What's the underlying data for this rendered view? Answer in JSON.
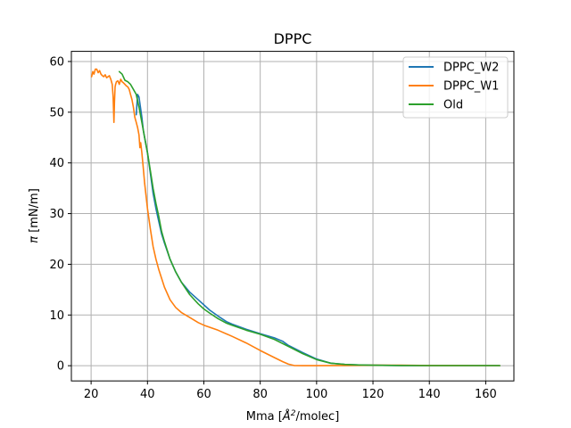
{
  "chart_data": {
    "type": "line",
    "title": "DPPC",
    "xlabel_prefix": "Mma [",
    "xlabel_symbol": "Å",
    "xlabel_sup": "2",
    "xlabel_suffix": "/molec]",
    "ylabel_symbol": "π",
    "ylabel_suffix": " [mN/m]",
    "xlim": [
      13,
      170
    ],
    "ylim": [
      -3,
      62
    ],
    "xticks": [
      20,
      40,
      60,
      80,
      100,
      120,
      140,
      160
    ],
    "yticks": [
      0,
      10,
      20,
      30,
      40,
      50,
      60
    ],
    "grid": true,
    "legend_position": "top-right",
    "series": [
      {
        "name": "DPPC_W2",
        "color": "#1f77b4",
        "x": [
          36,
          36.5,
          37,
          37.5,
          38,
          38.5,
          39,
          40,
          41,
          42,
          43,
          44,
          45,
          46,
          48,
          50,
          52,
          55,
          58,
          60,
          62,
          65,
          68,
          70,
          75,
          80,
          85,
          88,
          90,
          95,
          100,
          105,
          110,
          115,
          120,
          130,
          140,
          150,
          160,
          165
        ],
        "y": [
          49.5,
          53.5,
          53,
          51,
          49,
          46.5,
          45,
          42,
          38,
          34,
          31,
          28.5,
          26,
          24.2,
          21,
          18.5,
          16.5,
          14.5,
          13,
          12,
          11,
          9.8,
          8.7,
          8.2,
          7.2,
          6.3,
          5.5,
          4.8,
          4.0,
          2.6,
          1.3,
          0.5,
          0.25,
          0.15,
          0.1,
          0.05,
          0.03,
          0.02,
          0.02,
          0.02
        ]
      },
      {
        "name": "DPPC_W1",
        "color": "#ff7f0e",
        "x": [
          20.2,
          20.6,
          21,
          21.5,
          22,
          22.5,
          23,
          23.5,
          24,
          24.5,
          25,
          25.5,
          26,
          26.5,
          27,
          27.5,
          27.8,
          28.1,
          28.3,
          28.5,
          28.7,
          29,
          29.5,
          30,
          30.5,
          31,
          31.5,
          32,
          32.5,
          33,
          33.5,
          34,
          34.5,
          35,
          35.5,
          36,
          36.5,
          37,
          37.3,
          37.6,
          38,
          38.5,
          39,
          40,
          41,
          42,
          43,
          44,
          46,
          48,
          50,
          52,
          55,
          58,
          60,
          65,
          70,
          75,
          80,
          85,
          88,
          90,
          92,
          95,
          100,
          110,
          120,
          130,
          140,
          150,
          160,
          165
        ],
        "y": [
          57,
          58,
          57.5,
          58.5,
          58.5,
          57.8,
          58.2,
          57.5,
          57.2,
          57,
          57.4,
          56.8,
          57,
          57.2,
          56.5,
          55.5,
          53,
          48,
          52,
          55,
          55.5,
          56,
          56.2,
          55.5,
          56.5,
          56,
          55.8,
          55.5,
          55.2,
          55,
          54.5,
          53.5,
          52.5,
          51,
          49,
          48,
          47,
          45.5,
          43,
          44,
          42,
          39,
          36,
          31,
          27,
          23.5,
          21,
          19,
          15.5,
          13,
          11.5,
          10.5,
          9.5,
          8.5,
          8,
          7,
          5.8,
          4.5,
          3.0,
          1.6,
          0.8,
          0.3,
          0.05,
          0,
          0,
          0.05,
          0.1,
          0.1,
          0.05,
          0.05,
          0.02,
          0.02
        ]
      },
      {
        "name": "Old",
        "color": "#2ca02c",
        "x": [
          30,
          31,
          32,
          33,
          34,
          35,
          36,
          37,
          38,
          39,
          40,
          41,
          42,
          43,
          44,
          45,
          46,
          48,
          50,
          52,
          55,
          58,
          60,
          62,
          65,
          68,
          70,
          75,
          80,
          85,
          90,
          95,
          100,
          105,
          110,
          115,
          120,
          130,
          140,
          150,
          160,
          165
        ],
        "y": [
          58,
          57.5,
          56.3,
          56,
          55.5,
          54.5,
          53.5,
          51,
          48,
          45,
          42,
          38.5,
          35,
          32,
          29.5,
          26.5,
          24.5,
          21,
          18.5,
          16.5,
          14,
          12.2,
          11.2,
          10.4,
          9.3,
          8.4,
          8.0,
          7.0,
          6.2,
          5.2,
          3.8,
          2.4,
          1.2,
          0.5,
          0.25,
          0.15,
          0.1,
          0.05,
          0.03,
          0.02,
          0.02,
          0.02
        ]
      }
    ]
  }
}
